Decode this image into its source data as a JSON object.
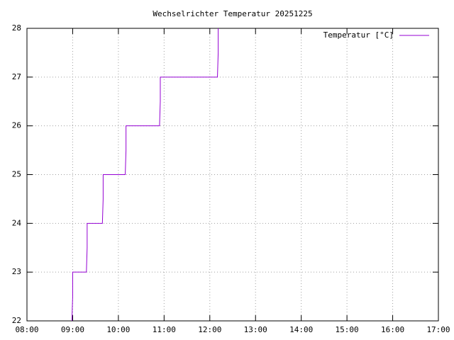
{
  "chart_data": {
    "type": "line",
    "title": "Wechselrichter Temperatur 20251225",
    "x": [
      "08:59",
      "09:00",
      "09:00",
      "09:18",
      "09:19",
      "09:19",
      "09:39",
      "09:40",
      "09:40",
      "10:09",
      "10:10",
      "10:10",
      "10:54",
      "10:55",
      "10:55",
      "12:10",
      "12:11",
      "12:11"
    ],
    "series": [
      {
        "name": "Temperatur [°C]",
        "color": "#9400d3",
        "values": [
          22,
          22.5,
          23,
          23,
          23.5,
          24,
          24,
          24.5,
          25,
          25,
          25.5,
          26,
          26,
          26.5,
          27,
          27,
          27.5,
          28
        ]
      }
    ],
    "xlim": [
      "08:00",
      "17:00"
    ],
    "xticks": [
      "08:00",
      "09:00",
      "10:00",
      "11:00",
      "12:00",
      "13:00",
      "14:00",
      "15:00",
      "16:00",
      "17:00"
    ],
    "ylim": [
      22,
      28
    ],
    "yticks": [
      22,
      23,
      24,
      25,
      26,
      27,
      28
    ],
    "grid": true,
    "legend": "top-right"
  }
}
